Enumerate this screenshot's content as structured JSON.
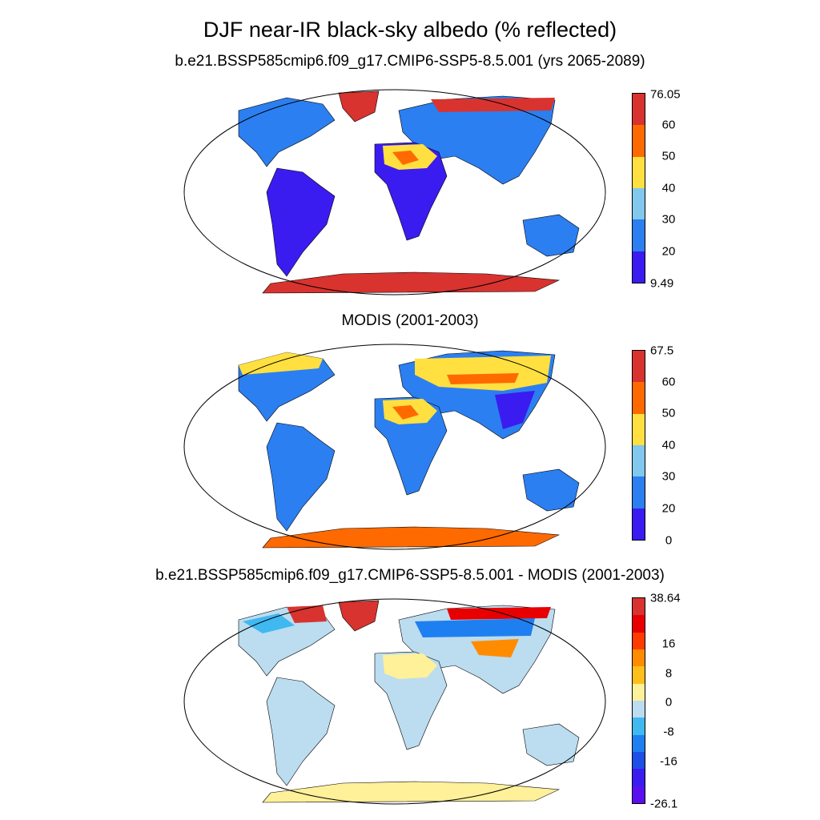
{
  "title": "DJF near-IR black-sky albedo (% reflected)",
  "panels": [
    {
      "title": "b.e21.BSSP585cmip6.f09_g17.CMIP6-SSP5-8.5.001 (yrs 2065-2089)",
      "colorbar": {
        "max": "76.05",
        "min": "9.49",
        "ticks": [
          "60",
          "50",
          "40",
          "30",
          "20"
        ],
        "colors": [
          "#d8332f",
          "#ff6a00",
          "#ffe040",
          "#80c8ee",
          "#2b7ff0",
          "#3a1cf0"
        ]
      }
    },
    {
      "title": "MODIS (2001-2003)",
      "colorbar": {
        "max": "67.5",
        "min": "0",
        "ticks": [
          "60",
          "50",
          "40",
          "30",
          "20"
        ],
        "colors": [
          "#d8332f",
          "#ff6a00",
          "#ffe040",
          "#80c8ee",
          "#2b7ff0",
          "#3a1cf0"
        ]
      }
    },
    {
      "title": "b.e21.BSSP585cmip6.f09_g17.CMIP6-SSP5-8.5.001 - MODIS (2001-2003)",
      "colorbar": {
        "max": "38.64",
        "min": "-26.1",
        "ticks": [
          "16",
          "8",
          "0",
          "-8",
          "-16"
        ],
        "colors": [
          "#d8332f",
          "#e80000",
          "#ff3c00",
          "#ff8c00",
          "#ffbf1a",
          "#fff09a",
          "#bcdcf0",
          "#40b8f0",
          "#1e80f0",
          "#1e4fe6",
          "#3a1cf0",
          "#5a10ee"
        ]
      }
    }
  ]
}
